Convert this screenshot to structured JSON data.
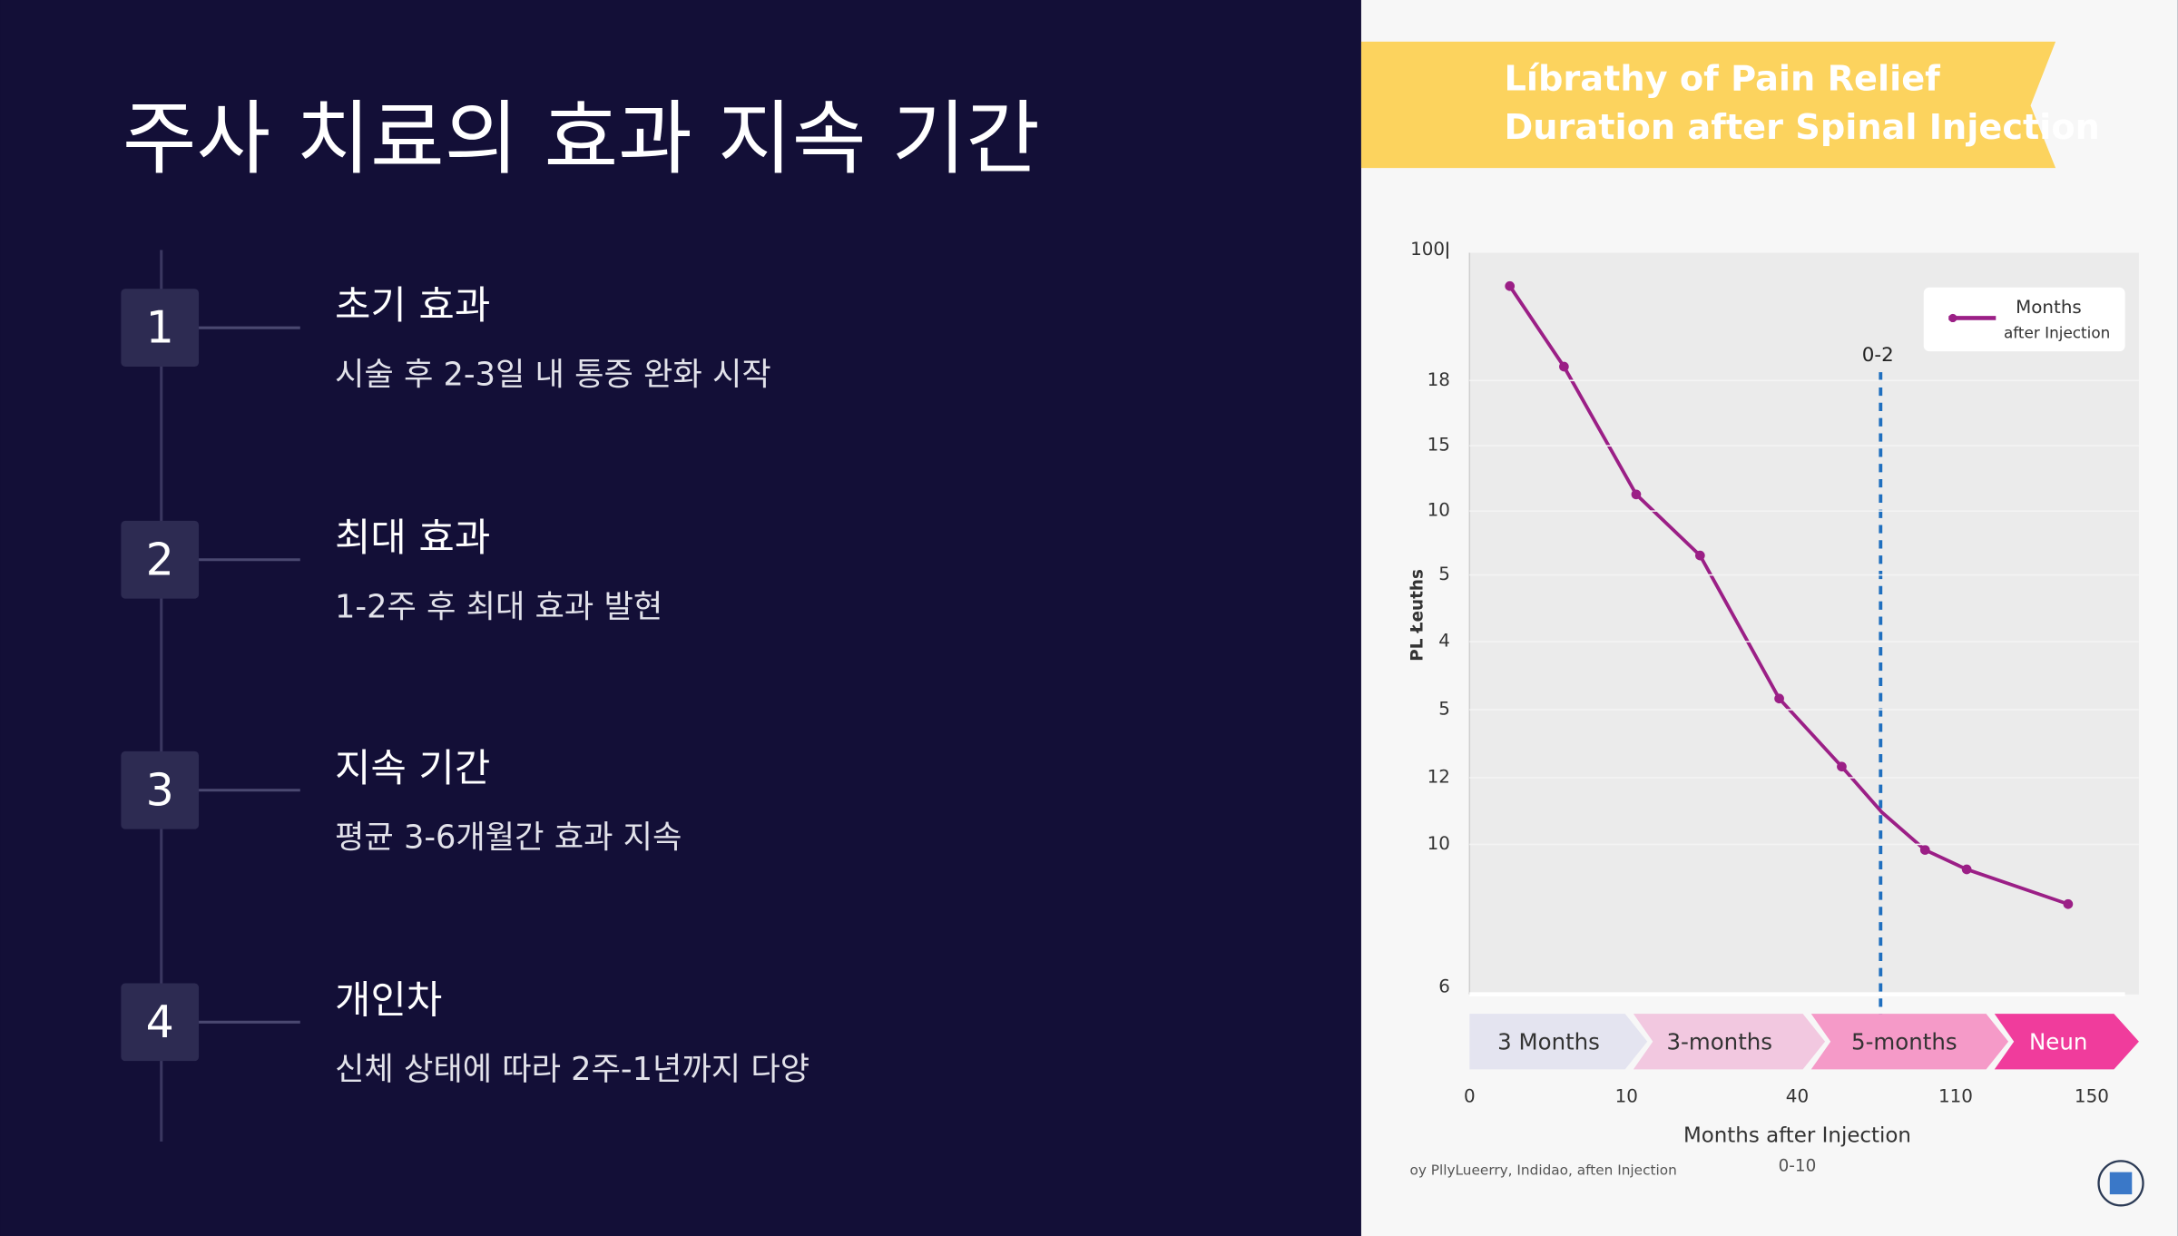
{
  "title": "주사 치료의 효과 지속 기간",
  "steps": [
    {
      "number": "1",
      "heading": "초기 효과",
      "text": "시술 후 2-3일 내 통증 완화 시작"
    },
    {
      "number": "2",
      "heading": "최대 효과",
      "text": "1-2주 후 최대 효과 발현"
    },
    {
      "number": "3",
      "heading": "지속 기간",
      "text": "평균 3-6개월간 효과 지속"
    },
    {
      "number": "4",
      "heading": "개인차",
      "text": "신체 상태에 따라 2주-1년까지 다양"
    }
  ],
  "figure": {
    "title_lines": [
      "Líbrathy of Pain Relief",
      "Duration after Spinal Injection"
    ],
    "y_axis_label": "PL Łeuths",
    "y_tick_labels": [
      "100ǀ",
      "18",
      "15",
      "10",
      "5",
      "4",
      "5",
      "12",
      "10",
      "6"
    ],
    "x_tick_labels": [
      "0",
      "10",
      "40",
      "110",
      "150"
    ],
    "x_axis_label": "Months after Injection",
    "x_axis_sublabel": "0-10",
    "legend": [
      "Months",
      "after Injection"
    ],
    "marker_label": "0-2",
    "phase_labels": [
      "3 Months",
      "3-months",
      "5-months",
      "Neun"
    ],
    "source": "oy PllyLueerry, Indidao, aften Injection"
  }
}
